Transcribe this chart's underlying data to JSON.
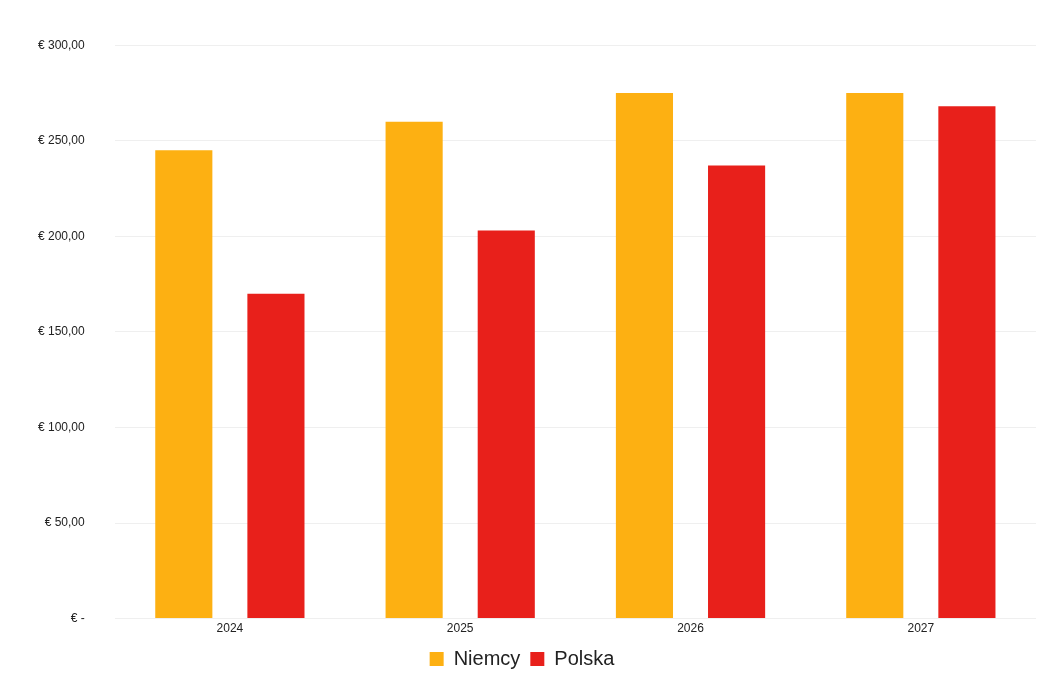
{
  "chart_data": {
    "type": "bar",
    "categories": [
      "2024",
      "2025",
      "2026",
      "2027"
    ],
    "series": [
      {
        "name": "Niemcy",
        "color": "#fdb012",
        "values": [
          245,
          260,
          275,
          275
        ]
      },
      {
        "name": "Polska",
        "color": "#e8201b",
        "values": [
          170,
          203,
          237,
          268
        ]
      }
    ],
    "ylim": [
      0,
      300
    ],
    "yticks": [
      {
        "value": 0,
        "label": "€ -"
      },
      {
        "value": 50,
        "label": "€ 50,00"
      },
      {
        "value": 100,
        "label": "€ 100,00"
      },
      {
        "value": 150,
        "label": "€ 150,00"
      },
      {
        "value": 200,
        "label": "€ 200,00"
      },
      {
        "value": 250,
        "label": "€ 250,00"
      },
      {
        "value": 300,
        "label": "€ 300,00"
      }
    ],
    "grid": "y",
    "legend": "bottom"
  }
}
